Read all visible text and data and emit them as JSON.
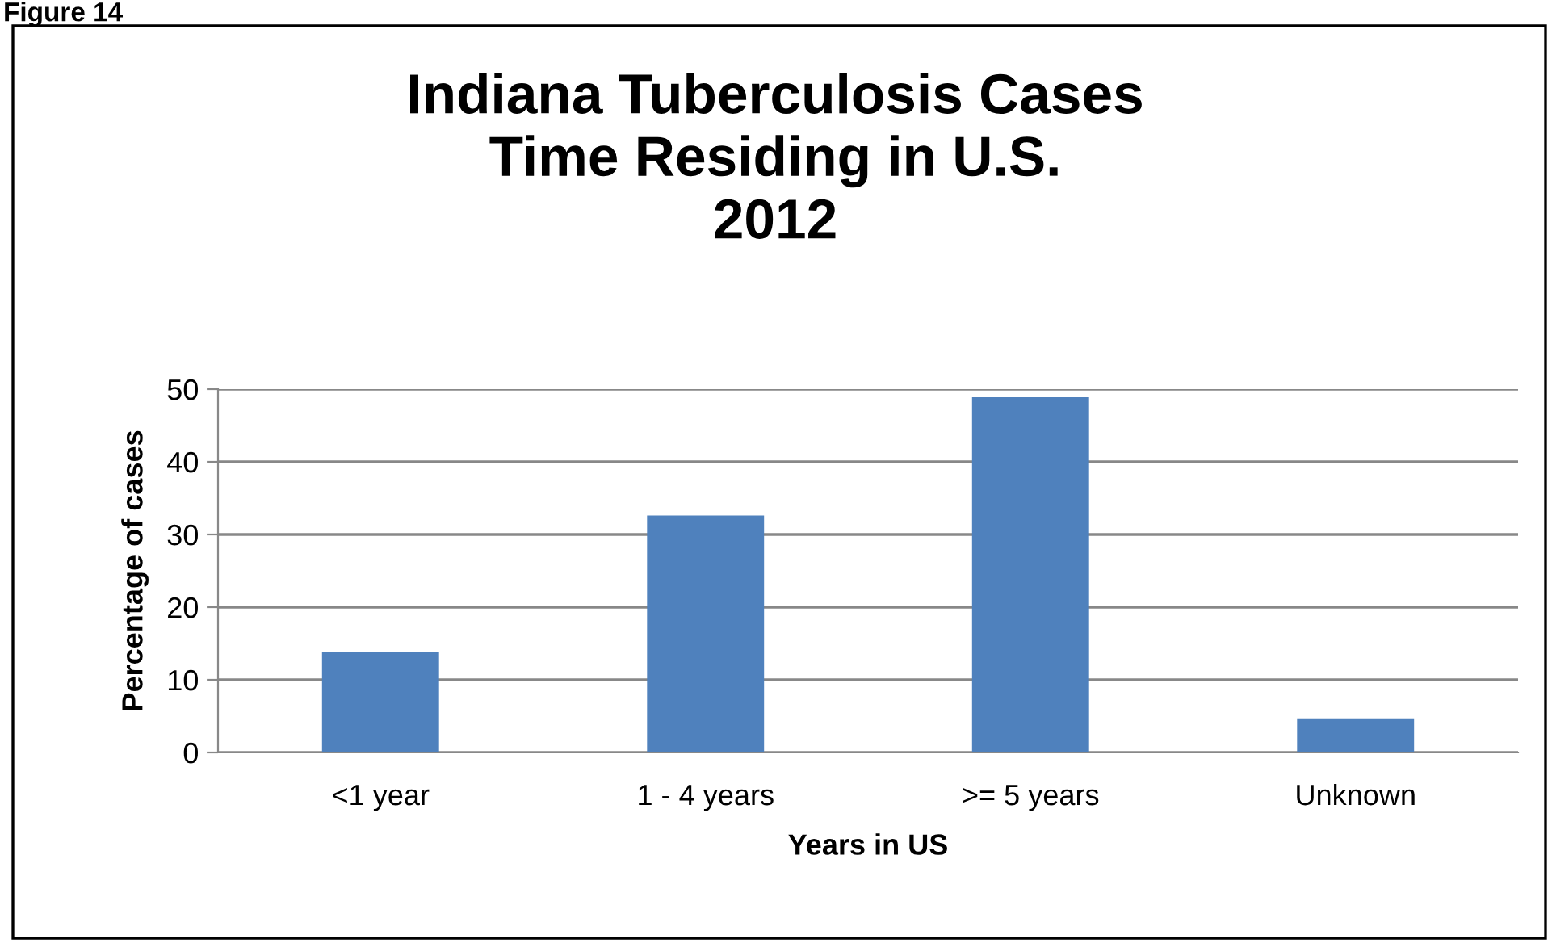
{
  "chart_data": {
    "type": "bar",
    "title": "Indiana Tuberculosis Cases\nTime Residing in U.S.\n2012",
    "xlabel": "Years in US",
    "ylabel": "Percentage of cases",
    "annotations": [
      "Figure 14"
    ],
    "categories": [
      "<1 year",
      "1 - 4 years",
      ">= 5 years",
      "Unknown"
    ],
    "values": [
      13.9,
      32.6,
      48.9,
      4.7
    ],
    "color": "#4f81bd",
    "ylim": [
      0,
      50
    ],
    "yticks": [
      0,
      10,
      20,
      30,
      40,
      50
    ],
    "grid": "y",
    "legend": false
  }
}
